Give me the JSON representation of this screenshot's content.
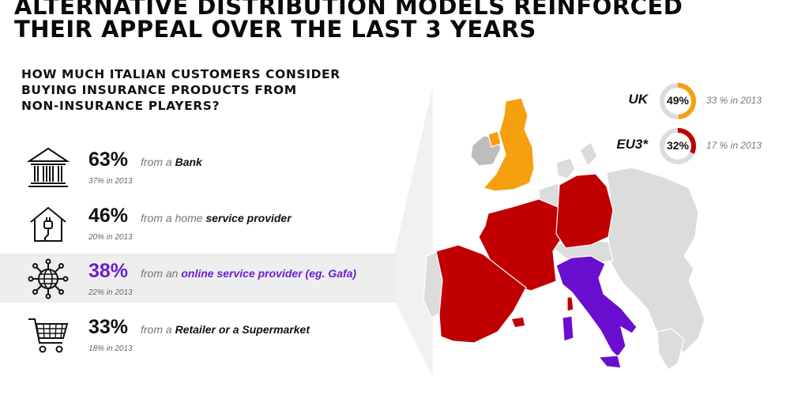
{
  "title": {
    "line1": "ALTERNATIVE DISTRIBUTION MODELS REINFORCED",
    "line2": "THEIR APPEAL OVER THE LAST 3 YEARS"
  },
  "question": {
    "line1": "HOW MUCH ITALIAN CUSTOMERS CONSIDER",
    "line2": "BUYING INSURANCE PRODUCTS FROM",
    "line3": "NON-INSURANCE PLAYERS?"
  },
  "channels": [
    {
      "percent": "63%",
      "prefix": "from a ",
      "channel": "Bank",
      "previous": "37% in 2013",
      "icon": "bank-icon"
    },
    {
      "percent": "46%",
      "prefix": "from a home ",
      "channel": "service provider",
      "previous": "20% in 2013",
      "icon": "home-plug-icon"
    },
    {
      "percent": "38%",
      "prefix": "from an ",
      "channel": "online service provider (eg. Gafa)",
      "previous": "22% in 2013",
      "icon": "globe-network-icon"
    },
    {
      "percent": "33%",
      "prefix": "from a ",
      "channel": "Retailer or a Supermarket",
      "previous": "18% in 2013",
      "icon": "shopping-cart-icon"
    }
  ],
  "benchmarks": [
    {
      "label": "UK",
      "value": "49%",
      "fraction": 0.49,
      "previous": "33 % in 2013",
      "color": "#f5a00f"
    },
    {
      "label": "EU3*",
      "value": "32%",
      "fraction": 0.32,
      "previous": "17 % in 2013",
      "color": "#c00000"
    }
  ],
  "colors": {
    "highlight": "#6a1fd0",
    "uk": "#f5a00f",
    "eu3": "#c00000",
    "italy": "#6a0fd0",
    "other_countries": "#dcdcdc",
    "ireland": "#bdbdbd"
  }
}
